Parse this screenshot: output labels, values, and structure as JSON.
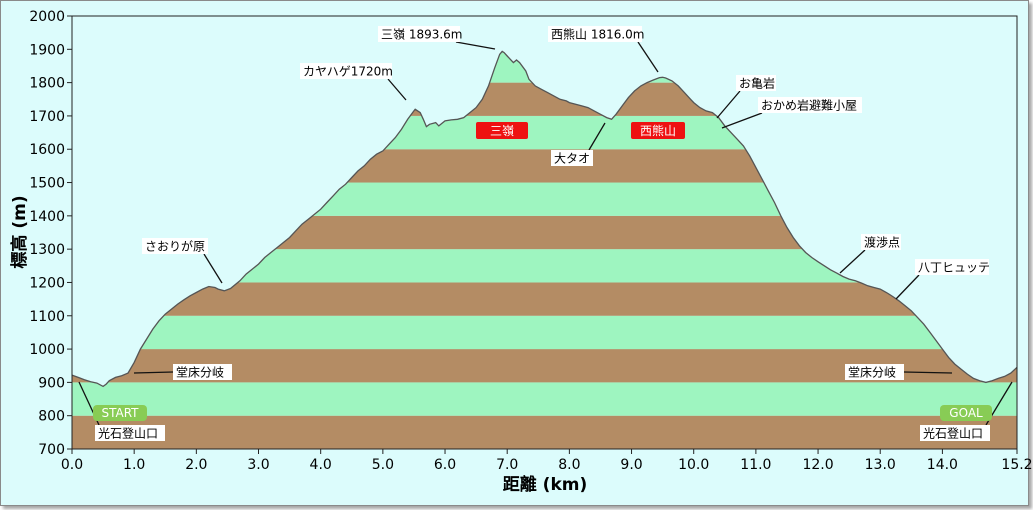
{
  "chart_data": {
    "type": "area",
    "xlabel": "距離 (km)",
    "ylabel": "標高 (m)",
    "xlim": [
      0,
      15.2
    ],
    "ylim": [
      700,
      2000
    ],
    "xticks": [
      0.0,
      1.0,
      2.0,
      3.0,
      4.0,
      5.0,
      6.0,
      7.0,
      8.0,
      9.0,
      10.0,
      11.0,
      12.0,
      13.0,
      14.0,
      15.2
    ],
    "xtick_labels": [
      "0.0",
      "1.0",
      "2.0",
      "3.0",
      "4.0",
      "5.0",
      "6.0",
      "7.0",
      "8.0",
      "9.0",
      "10.0",
      "11.0",
      "12.0",
      "13.0",
      "14.0",
      "15.2"
    ],
    "yticks": [
      700,
      800,
      900,
      1000,
      1100,
      1200,
      1300,
      1400,
      1500,
      1600,
      1700,
      1800,
      1900,
      2000
    ],
    "band_colors": [
      "#b48c64",
      "#9ef5c0"
    ],
    "line_color": "#555555",
    "profile": [
      [
        0.0,
        922
      ],
      [
        0.1,
        915
      ],
      [
        0.2,
        908
      ],
      [
        0.3,
        902
      ],
      [
        0.4,
        898
      ],
      [
        0.5,
        888
      ],
      [
        0.55,
        895
      ],
      [
        0.6,
        905
      ],
      [
        0.7,
        915
      ],
      [
        0.8,
        920
      ],
      [
        0.9,
        928
      ],
      [
        1.0,
        960
      ],
      [
        1.1,
        1000
      ],
      [
        1.2,
        1030
      ],
      [
        1.3,
        1060
      ],
      [
        1.4,
        1085
      ],
      [
        1.5,
        1105
      ],
      [
        1.6,
        1120
      ],
      [
        1.7,
        1135
      ],
      [
        1.8,
        1148
      ],
      [
        1.9,
        1160
      ],
      [
        2.0,
        1170
      ],
      [
        2.1,
        1180
      ],
      [
        2.2,
        1188
      ],
      [
        2.3,
        1185
      ],
      [
        2.35,
        1180
      ],
      [
        2.45,
        1175
      ],
      [
        2.55,
        1182
      ],
      [
        2.7,
        1205
      ],
      [
        2.8,
        1225
      ],
      [
        2.9,
        1240
      ],
      [
        3.0,
        1255
      ],
      [
        3.1,
        1275
      ],
      [
        3.2,
        1290
      ],
      [
        3.3,
        1305
      ],
      [
        3.4,
        1320
      ],
      [
        3.5,
        1335
      ],
      [
        3.6,
        1355
      ],
      [
        3.7,
        1375
      ],
      [
        3.8,
        1390
      ],
      [
        3.9,
        1405
      ],
      [
        4.0,
        1420
      ],
      [
        4.1,
        1440
      ],
      [
        4.2,
        1460
      ],
      [
        4.3,
        1480
      ],
      [
        4.4,
        1495
      ],
      [
        4.5,
        1515
      ],
      [
        4.6,
        1535
      ],
      [
        4.7,
        1550
      ],
      [
        4.8,
        1570
      ],
      [
        4.9,
        1585
      ],
      [
        5.0,
        1595
      ],
      [
        5.1,
        1615
      ],
      [
        5.2,
        1635
      ],
      [
        5.3,
        1660
      ],
      [
        5.4,
        1690
      ],
      [
        5.5,
        1715
      ],
      [
        5.52,
        1720
      ],
      [
        5.6,
        1710
      ],
      [
        5.65,
        1690
      ],
      [
        5.7,
        1668
      ],
      [
        5.75,
        1675
      ],
      [
        5.85,
        1680
      ],
      [
        5.9,
        1670
      ],
      [
        6.0,
        1685
      ],
      [
        6.1,
        1688
      ],
      [
        6.2,
        1690
      ],
      [
        6.3,
        1695
      ],
      [
        6.4,
        1710
      ],
      [
        6.5,
        1725
      ],
      [
        6.6,
        1750
      ],
      [
        6.7,
        1790
      ],
      [
        6.8,
        1845
      ],
      [
        6.88,
        1885
      ],
      [
        6.92,
        1893.6
      ],
      [
        6.95,
        1890
      ],
      [
        7.0,
        1880
      ],
      [
        7.05,
        1870
      ],
      [
        7.1,
        1860
      ],
      [
        7.15,
        1868
      ],
      [
        7.2,
        1860
      ],
      [
        7.3,
        1835
      ],
      [
        7.35,
        1810
      ],
      [
        7.45,
        1790
      ],
      [
        7.55,
        1780
      ],
      [
        7.65,
        1770
      ],
      [
        7.75,
        1760
      ],
      [
        7.85,
        1750
      ],
      [
        7.95,
        1745
      ],
      [
        8.0,
        1740
      ],
      [
        8.1,
        1735
      ],
      [
        8.2,
        1730
      ],
      [
        8.3,
        1725
      ],
      [
        8.4,
        1715
      ],
      [
        8.5,
        1705
      ],
      [
        8.6,
        1695
      ],
      [
        8.68,
        1690
      ],
      [
        8.75,
        1705
      ],
      [
        8.85,
        1730
      ],
      [
        8.95,
        1755
      ],
      [
        9.05,
        1775
      ],
      [
        9.15,
        1790
      ],
      [
        9.25,
        1800
      ],
      [
        9.35,
        1808
      ],
      [
        9.45,
        1815
      ],
      [
        9.5,
        1816
      ],
      [
        9.55,
        1814
      ],
      [
        9.65,
        1805
      ],
      [
        9.75,
        1790
      ],
      [
        9.85,
        1770
      ],
      [
        9.95,
        1750
      ],
      [
        10.0,
        1740
      ],
      [
        10.1,
        1725
      ],
      [
        10.2,
        1715
      ],
      [
        10.3,
        1710
      ],
      [
        10.4,
        1695
      ],
      [
        10.5,
        1670
      ],
      [
        10.6,
        1650
      ],
      [
        10.7,
        1630
      ],
      [
        10.8,
        1610
      ],
      [
        10.9,
        1580
      ],
      [
        11.0,
        1545
      ],
      [
        11.1,
        1510
      ],
      [
        11.2,
        1475
      ],
      [
        11.3,
        1440
      ],
      [
        11.4,
        1400
      ],
      [
        11.5,
        1365
      ],
      [
        11.6,
        1335
      ],
      [
        11.7,
        1310
      ],
      [
        11.8,
        1290
      ],
      [
        11.9,
        1275
      ],
      [
        12.0,
        1262
      ],
      [
        12.1,
        1250
      ],
      [
        12.2,
        1238
      ],
      [
        12.3,
        1228
      ],
      [
        12.4,
        1218
      ],
      [
        12.5,
        1210
      ],
      [
        12.6,
        1205
      ],
      [
        12.7,
        1198
      ],
      [
        12.8,
        1190
      ],
      [
        12.9,
        1185
      ],
      [
        13.0,
        1180
      ],
      [
        13.1,
        1170
      ],
      [
        13.2,
        1158
      ],
      [
        13.3,
        1145
      ],
      [
        13.4,
        1130
      ],
      [
        13.5,
        1115
      ],
      [
        13.6,
        1095
      ],
      [
        13.7,
        1075
      ],
      [
        13.8,
        1050
      ],
      [
        13.9,
        1025
      ],
      [
        14.0,
        1000
      ],
      [
        14.1,
        975
      ],
      [
        14.2,
        955
      ],
      [
        14.3,
        940
      ],
      [
        14.4,
        925
      ],
      [
        14.5,
        912
      ],
      [
        14.6,
        905
      ],
      [
        14.7,
        900
      ],
      [
        14.8,
        905
      ],
      [
        14.9,
        912
      ],
      [
        15.0,
        918
      ],
      [
        15.1,
        928
      ],
      [
        15.2,
        945
      ]
    ],
    "annotations": [
      {
        "text": "三嶺 1893.6m",
        "point": [
          6.92,
          1893.6
        ]
      },
      {
        "text": "西熊山 1816.0m",
        "point": [
          9.5,
          1816
        ]
      },
      {
        "text": "カヤハゲ1720m",
        "point": [
          5.52,
          1720
        ]
      },
      {
        "text": "お亀岩",
        "point": [
          10.4,
          1695
        ]
      },
      {
        "text": "おかめ岩避難小屋",
        "point": [
          10.5,
          1670
        ]
      },
      {
        "text": "大タオ",
        "point": [
          8.68,
          1690
        ]
      },
      {
        "text": "さおりが原",
        "point": [
          2.45,
          1175
        ]
      },
      {
        "text": "渡渉点",
        "point": [
          12.3,
          1228
        ]
      },
      {
        "text": "八丁ヒュッテ",
        "point": [
          13.2,
          1158
        ]
      },
      {
        "text": "堂床分岐",
        "point": [
          0.9,
          928
        ]
      },
      {
        "text": "堂床分岐",
        "point": [
          14.2,
          925
        ]
      },
      {
        "text": "光石登山口",
        "point": [
          0.0,
          922
        ]
      },
      {
        "text": "光石登山口",
        "point": [
          15.2,
          945
        ]
      }
    ],
    "peak_badges": [
      {
        "text": "三嶺",
        "color": "#ee1111"
      },
      {
        "text": "西熊山",
        "color": "#ee1111"
      }
    ],
    "endpoint_badges": [
      {
        "text": "START",
        "color": "#88cc55"
      },
      {
        "text": "GOAL",
        "color": "#88cc55"
      }
    ]
  }
}
